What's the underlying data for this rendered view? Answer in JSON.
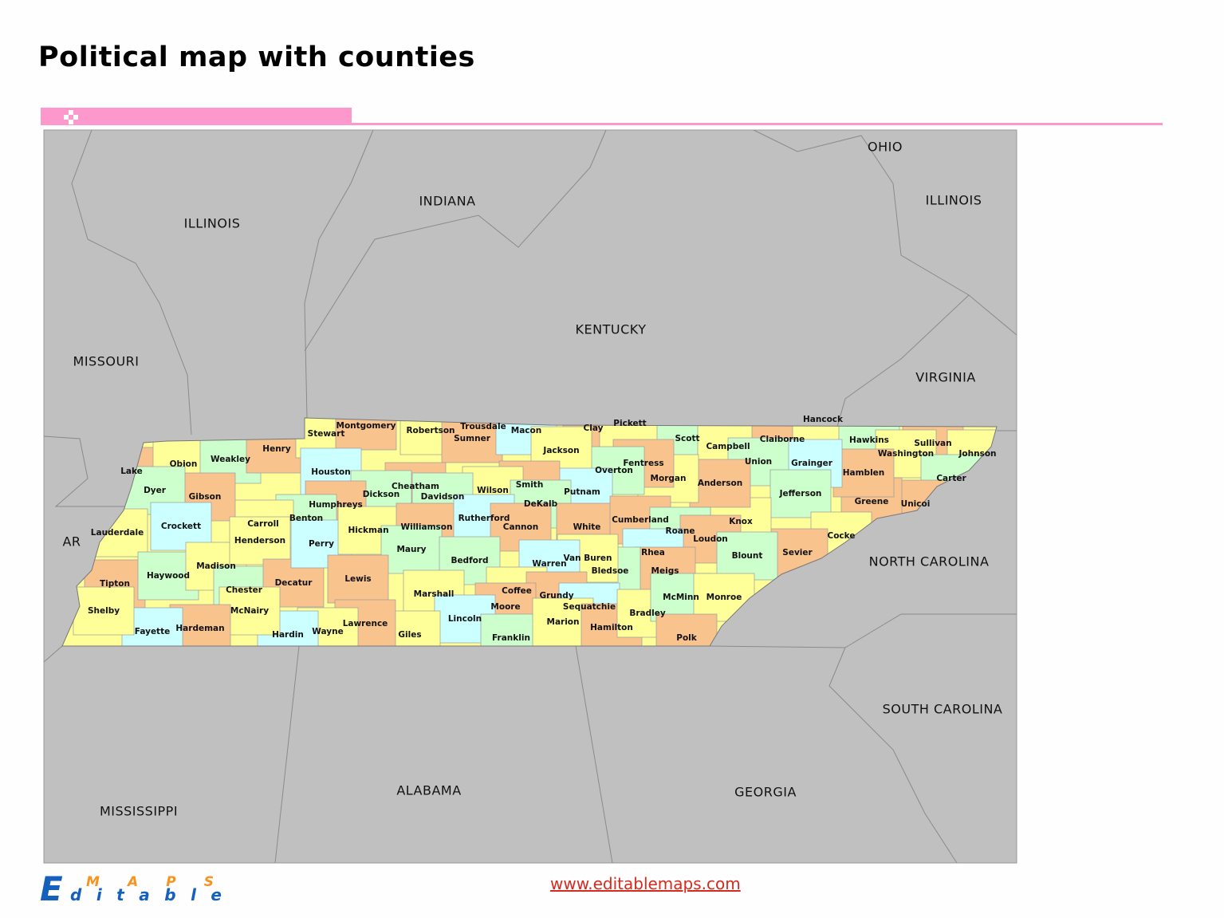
{
  "title": "Political map with counties",
  "url": "www.editablemaps.com",
  "logo": {
    "line1": "MAPS",
    "line2": "Editable",
    "colors": {
      "blue": "#1560bd",
      "orange": "#f7931e"
    }
  },
  "colors": {
    "accent_pink": "#fd98cc",
    "background_map": "#c0c0c0",
    "yellow": "#ffff99",
    "orange": "#f9c38e",
    "green": "#ccffcc",
    "cyan": "#ccffff"
  },
  "states": [
    "OHIO",
    "ILLINOIS",
    "INDIANA",
    "ILLINOIS",
    "KENTUCKY",
    "MISSOURI",
    "VIRGINIA",
    "AR",
    "NORTH CAROLINA",
    "SOUTH CAROLINA",
    "ALABAMA",
    "GEORGIA",
    "MISSISSIPPI"
  ],
  "counties": [
    {
      "name": "Lake",
      "color": "orange"
    },
    {
      "name": "Obion",
      "color": "yellow"
    },
    {
      "name": "Weakley",
      "color": "green"
    },
    {
      "name": "Henry",
      "color": "orange"
    },
    {
      "name": "Stewart",
      "color": "yellow"
    },
    {
      "name": "Montgomery",
      "color": "orange"
    },
    {
      "name": "Robertson",
      "color": "yellow"
    },
    {
      "name": "Trousdale",
      "color": "orange"
    },
    {
      "name": "Sumner",
      "color": "orange"
    },
    {
      "name": "Macon",
      "color": "cyan"
    },
    {
      "name": "Clay",
      "color": "orange"
    },
    {
      "name": "Pickett",
      "color": "yellow"
    },
    {
      "name": "Scott",
      "color": "green"
    },
    {
      "name": "Campbell",
      "color": "yellow"
    },
    {
      "name": "Claiborne",
      "color": "orange"
    },
    {
      "name": "Hancock",
      "color": "yellow"
    },
    {
      "name": "Hawkins",
      "color": "green"
    },
    {
      "name": "Sullivan",
      "color": "orange"
    },
    {
      "name": "Johnson",
      "color": "yellow"
    },
    {
      "name": "Washington",
      "color": "yellow"
    },
    {
      "name": "Carter",
      "color": "green"
    },
    {
      "name": "Unicoi",
      "color": "orange"
    },
    {
      "name": "Greene",
      "color": "orange"
    },
    {
      "name": "Hamblen",
      "color": "orange"
    },
    {
      "name": "Grainger",
      "color": "cyan"
    },
    {
      "name": "Union",
      "color": "green"
    },
    {
      "name": "Jefferson",
      "color": "green"
    },
    {
      "name": "Cocke",
      "color": "yellow"
    },
    {
      "name": "Sevier",
      "color": "orange"
    },
    {
      "name": "Knox",
      "color": "yellow"
    },
    {
      "name": "Anderson",
      "color": "orange"
    },
    {
      "name": "Morgan",
      "color": "yellow"
    },
    {
      "name": "Fentress",
      "color": "orange"
    },
    {
      "name": "Overton",
      "color": "green"
    },
    {
      "name": "Jackson",
      "color": "yellow"
    },
    {
      "name": "Putnam",
      "color": "cyan"
    },
    {
      "name": "Smith",
      "color": "orange"
    },
    {
      "name": "Wilson",
      "color": "yellow"
    },
    {
      "name": "DeKalb",
      "color": "green"
    },
    {
      "name": "Cheatham",
      "color": "orange"
    },
    {
      "name": "Davidson",
      "color": "green"
    },
    {
      "name": "Houston",
      "color": "cyan"
    },
    {
      "name": "Dickson",
      "color": "green"
    },
    {
      "name": "Humphreys",
      "color": "orange"
    },
    {
      "name": "Benton",
      "color": "green"
    },
    {
      "name": "Carroll",
      "color": "yellow"
    },
    {
      "name": "Gibson",
      "color": "orange"
    },
    {
      "name": "Dyer",
      "color": "green"
    },
    {
      "name": "Crockett",
      "color": "cyan"
    },
    {
      "name": "Lauderdale",
      "color": "yellow"
    },
    {
      "name": "Tipton",
      "color": "orange"
    },
    {
      "name": "Haywood",
      "color": "green"
    },
    {
      "name": "Madison",
      "color": "yellow"
    },
    {
      "name": "Henderson",
      "color": "yellow"
    },
    {
      "name": "Chester",
      "color": "green"
    },
    {
      "name": "Decatur",
      "color": "orange"
    },
    {
      "name": "Perry",
      "color": "cyan"
    },
    {
      "name": "Hickman",
      "color": "yellow"
    },
    {
      "name": "Williamson",
      "color": "orange"
    },
    {
      "name": "Rutherford",
      "color": "cyan"
    },
    {
      "name": "Cannon",
      "color": "orange"
    },
    {
      "name": "White",
      "color": "orange"
    },
    {
      "name": "Cumberland",
      "color": "orange"
    },
    {
      "name": "Roane",
      "color": "green"
    },
    {
      "name": "Loudon",
      "color": "orange"
    },
    {
      "name": "Blount",
      "color": "green"
    },
    {
      "name": "Rhea",
      "color": "cyan"
    },
    {
      "name": "Meigs",
      "color": "orange"
    },
    {
      "name": "Bledsoe",
      "color": "green"
    },
    {
      "name": "Van Buren",
      "color": "yellow"
    },
    {
      "name": "Warren",
      "color": "cyan"
    },
    {
      "name": "Maury",
      "color": "green"
    },
    {
      "name": "Lewis",
      "color": "orange"
    },
    {
      "name": "Bedford",
      "color": "green"
    },
    {
      "name": "Marshall",
      "color": "yellow"
    },
    {
      "name": "Coffee",
      "color": "yellow"
    },
    {
      "name": "Grundy",
      "color": "orange"
    },
    {
      "name": "Sequatchie",
      "color": "cyan"
    },
    {
      "name": "Moore",
      "color": "orange"
    },
    {
      "name": "Lincoln",
      "color": "cyan"
    },
    {
      "name": "Franklin",
      "color": "green"
    },
    {
      "name": "Marion",
      "color": "yellow"
    },
    {
      "name": "Hamilton",
      "color": "orange"
    },
    {
      "name": "Bradley",
      "color": "yellow"
    },
    {
      "name": "McMinn",
      "color": "green"
    },
    {
      "name": "Monroe",
      "color": "yellow"
    },
    {
      "name": "Polk",
      "color": "orange"
    },
    {
      "name": "Giles",
      "color": "yellow"
    },
    {
      "name": "Lawrence",
      "color": "orange"
    },
    {
      "name": "Wayne",
      "color": "yellow"
    },
    {
      "name": "Hardin",
      "color": "cyan"
    },
    {
      "name": "McNairy",
      "color": "yellow"
    },
    {
      "name": "Hardeman",
      "color": "orange"
    },
    {
      "name": "Fayette",
      "color": "cyan"
    },
    {
      "name": "Shelby",
      "color": "yellow"
    }
  ]
}
